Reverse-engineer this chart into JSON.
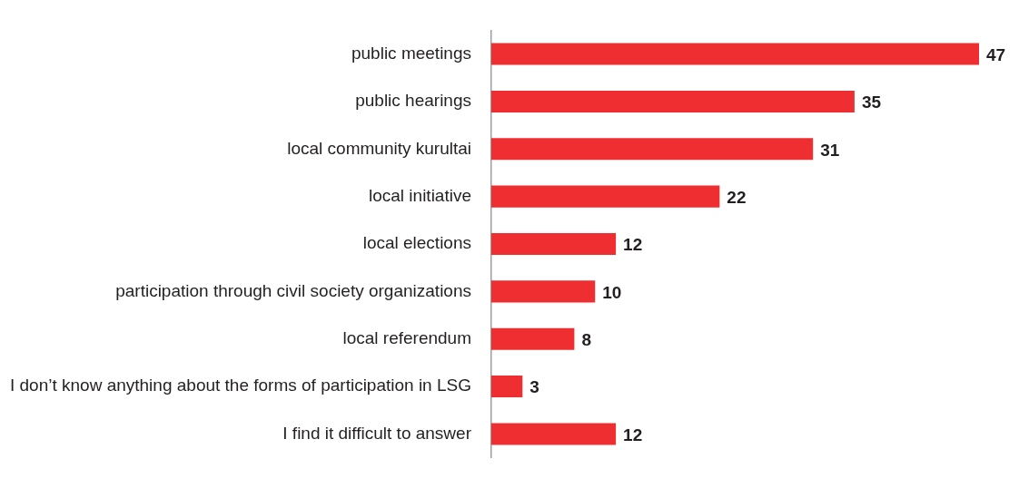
{
  "chart_data": {
    "type": "bar",
    "orientation": "horizontal",
    "categories": [
      "public meetings",
      "public hearings",
      "local community kurultai",
      "local initiative",
      "local elections",
      "participation through civil society organizations",
      "local referendum",
      "I don’t know anything about the forms of participation in LSG",
      "I find it difficult to answer"
    ],
    "values": [
      47,
      35,
      31,
      22,
      12,
      10,
      8,
      3,
      12
    ],
    "color": "#ee2e31",
    "data_labels": true,
    "grid": false,
    "legend": false
  }
}
